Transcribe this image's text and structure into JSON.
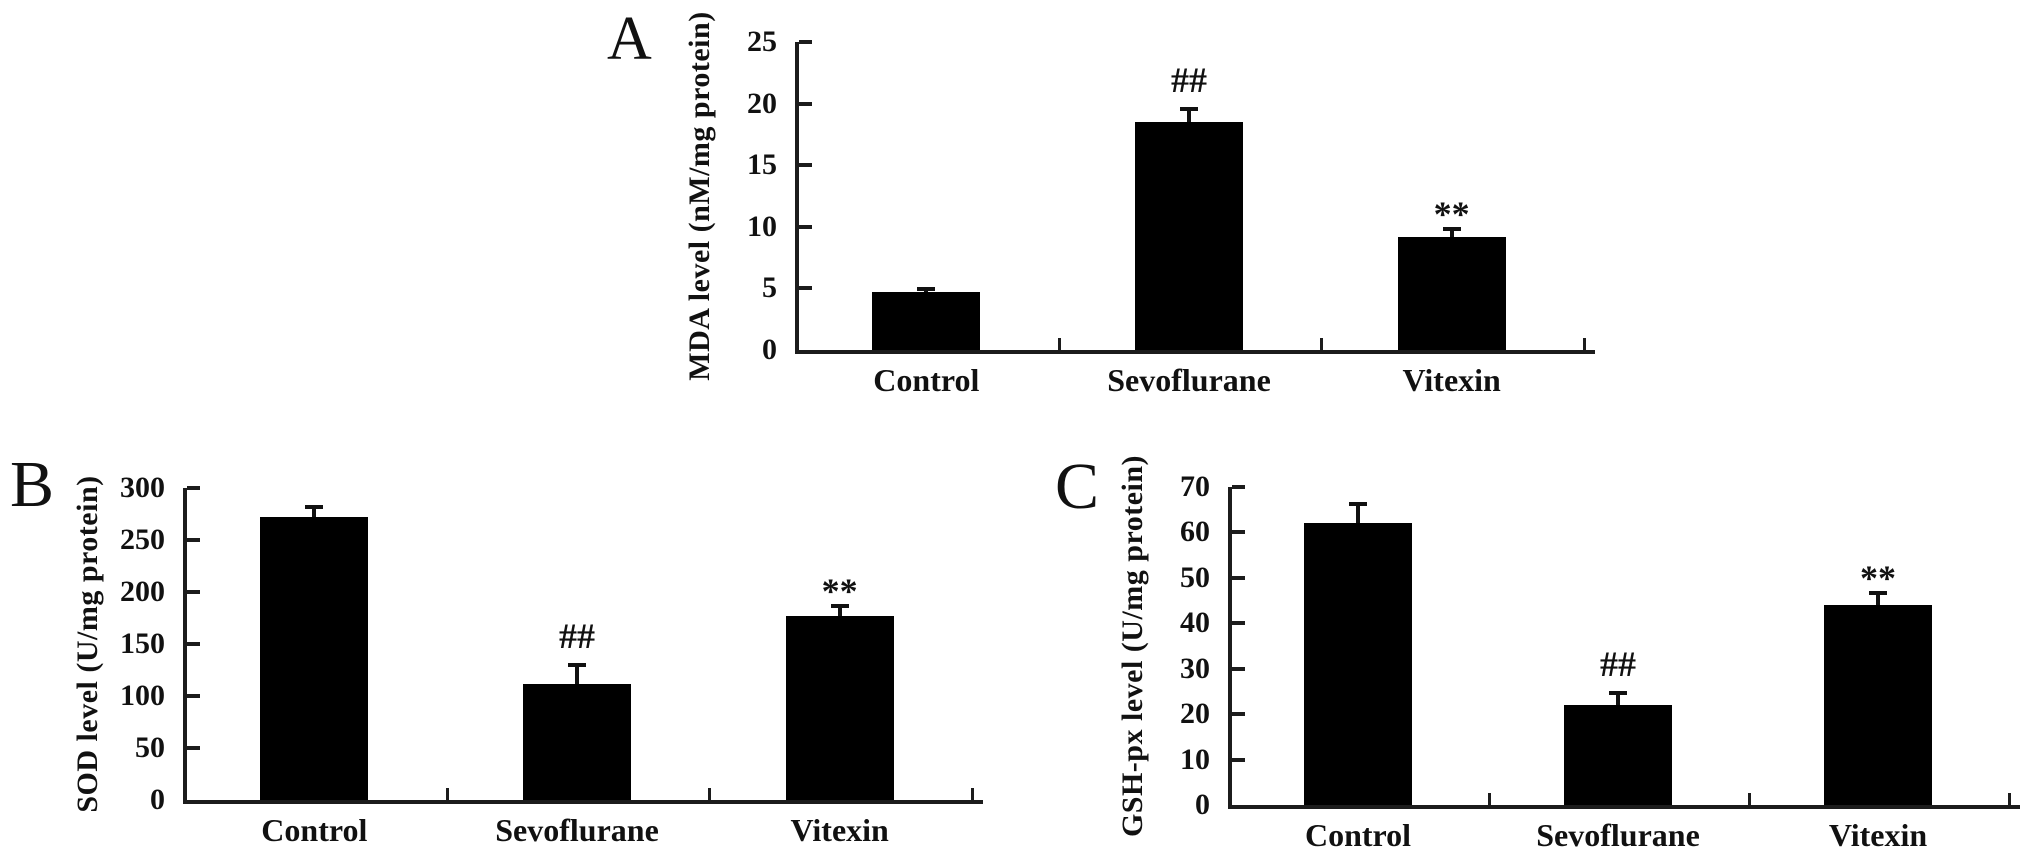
{
  "figure": {
    "background": "#ffffff",
    "panel_labels": [
      "A",
      "B",
      "C"
    ]
  },
  "chart_data": [
    {
      "type": "bar",
      "panel_label": "A",
      "title": "",
      "xlabel": "",
      "ylabel": "MDA level (nM/mg protein)",
      "ylim": [
        0,
        25
      ],
      "yticks": [
        0,
        5,
        10,
        15,
        20,
        25
      ],
      "categories": [
        "Control",
        "Sevoflurane",
        "Vitexin"
      ],
      "values": [
        4.7,
        18.5,
        9.2
      ],
      "errors_plus": [
        0.2,
        1.0,
        0.5
      ],
      "annotations": [
        "",
        "##",
        "**"
      ],
      "bar_color": "#000000",
      "axis_color": "#1c1c1c",
      "grid": false,
      "legend": ""
    },
    {
      "type": "bar",
      "panel_label": "B",
      "title": "",
      "xlabel": "",
      "ylabel": "SOD level (U/mg protein)",
      "ylim": [
        0,
        300
      ],
      "yticks": [
        0,
        50,
        100,
        150,
        200,
        250,
        300
      ],
      "categories": [
        "Control",
        "Sevoflurane",
        "Vitexin"
      ],
      "values": [
        272,
        112,
        177
      ],
      "errors_plus": [
        9,
        17,
        9
      ],
      "annotations": [
        "",
        "##",
        "**"
      ],
      "bar_color": "#000000",
      "axis_color": "#1c1c1c",
      "grid": false,
      "legend": ""
    },
    {
      "type": "bar",
      "panel_label": "C",
      "title": "",
      "xlabel": "",
      "ylabel": "GSH-px level (U/mg protein)",
      "ylim": [
        0,
        70
      ],
      "yticks": [
        0,
        10,
        20,
        30,
        40,
        50,
        60,
        70
      ],
      "categories": [
        "Control",
        "Sevoflurane",
        "Vitexin"
      ],
      "values": [
        62,
        22,
        44
      ],
      "errors_plus": [
        4,
        2.5,
        2.5
      ],
      "annotations": [
        "",
        "##",
        "**"
      ],
      "bar_color": "#000000",
      "axis_color": "#1c1c1c",
      "grid": false,
      "legend": ""
    }
  ]
}
